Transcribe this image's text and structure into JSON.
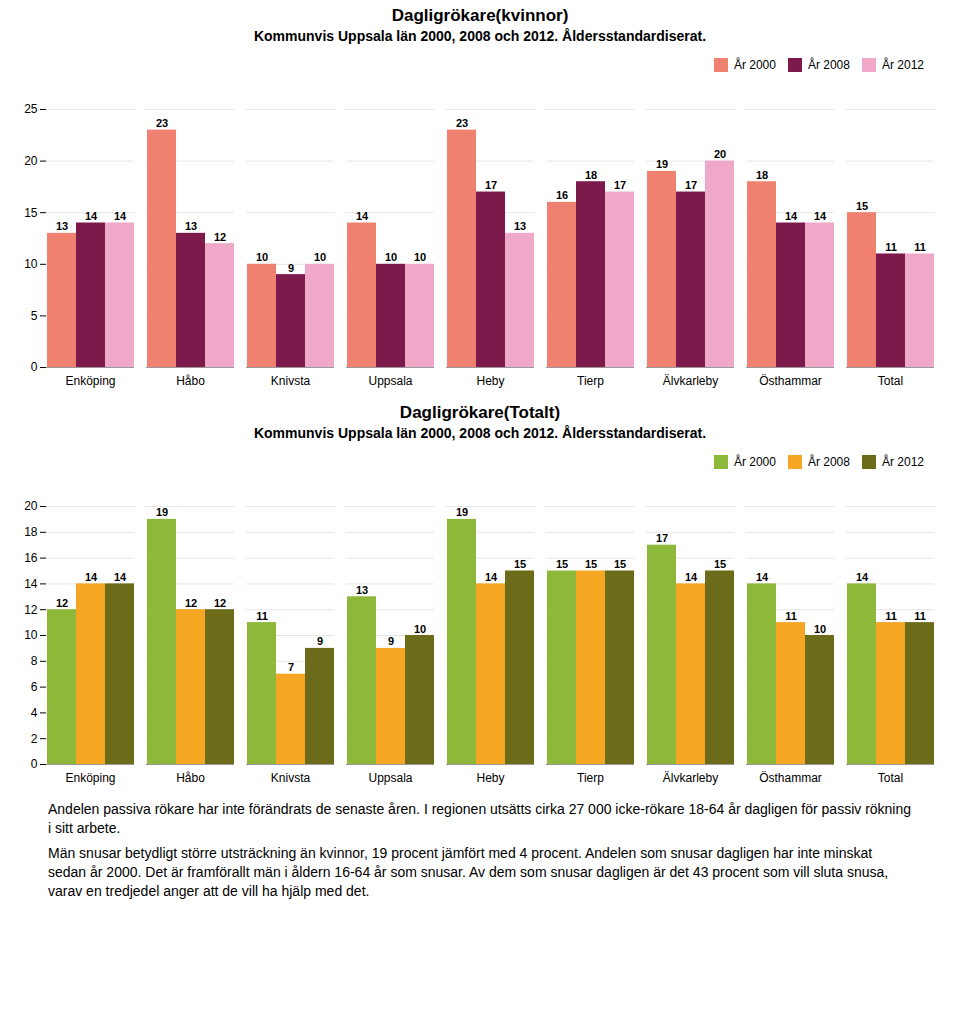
{
  "chart_data": [
    {
      "type": "bar",
      "title": "Dagligrökare(kvinnor)",
      "subtitle": "Kommunvis Uppsala län 2000, 2008 och 2012. Åldersstandardiserat.",
      "categories": [
        "Enköping",
        "Håbo",
        "Knivsta",
        "Uppsala",
        "Heby",
        "Tierp",
        "Älvkarleby",
        "Östhammar",
        "Total"
      ],
      "series": [
        {
          "name": "År 2000",
          "color": "#F08070",
          "values": [
            13,
            23,
            10,
            14,
            23,
            16,
            19,
            18,
            15
          ]
        },
        {
          "name": "År 2008",
          "color": "#7B1A4B",
          "values": [
            14,
            13,
            9,
            10,
            17,
            18,
            17,
            14,
            11
          ]
        },
        {
          "name": "År 2012",
          "color": "#F0A8C8",
          "values": [
            14,
            12,
            10,
            10,
            13,
            17,
            20,
            14,
            11
          ]
        }
      ],
      "ylim": [
        0,
        25
      ],
      "yticks": [
        0,
        5,
        10,
        15,
        20,
        25
      ],
      "grid": true,
      "legend": "upper right",
      "data_labels": true
    },
    {
      "type": "bar",
      "title": "Dagligrökare(Totalt)",
      "subtitle": "Kommunvis Uppsala län 2000, 2008 och 2012. Åldersstandardiserat.",
      "categories": [
        "Enköping",
        "Håbo",
        "Knivsta",
        "Uppsala",
        "Heby",
        "Tierp",
        "Älvkarleby",
        "Östhammar",
        "Total"
      ],
      "series": [
        {
          "name": "År 2000",
          "color": "#8DB83A",
          "values": [
            12,
            19,
            11,
            13,
            19,
            15,
            17,
            14,
            14
          ]
        },
        {
          "name": "År 2008",
          "color": "#F5A623",
          "values": [
            14,
            12,
            7,
            9,
            14,
            15,
            14,
            11,
            11
          ]
        },
        {
          "name": "År 2012",
          "color": "#6B6B1A",
          "values": [
            14,
            12,
            9,
            10,
            15,
            15,
            15,
            10,
            11
          ]
        }
      ],
      "ylim": [
        0,
        20
      ],
      "yticks": [
        0,
        2,
        4,
        6,
        8,
        10,
        12,
        14,
        16,
        18,
        20
      ],
      "grid": true,
      "legend": "upper right",
      "data_labels": true,
      "annotations": [
        "Andelen passiva rökare har inte förändrats de senaste åren. I regionen utsätts cirka 27 000 icke-rökare 18-64 år dagligen för passiv rökning i sitt arbete.",
        "Män snusar betydligt större utsträckning än kvinnor, 19 procent jämfört med 4 procent. Andelen som snusar dagligen har inte minskat sedan år 2000. Det är framförallt män i åldern 16-64 år som snusar. Av dem som snusar dagligen är det 43 procent som vill sluta snusa, varav en tredjedel anger att de vill ha hjälp med det."
      ]
    }
  ]
}
